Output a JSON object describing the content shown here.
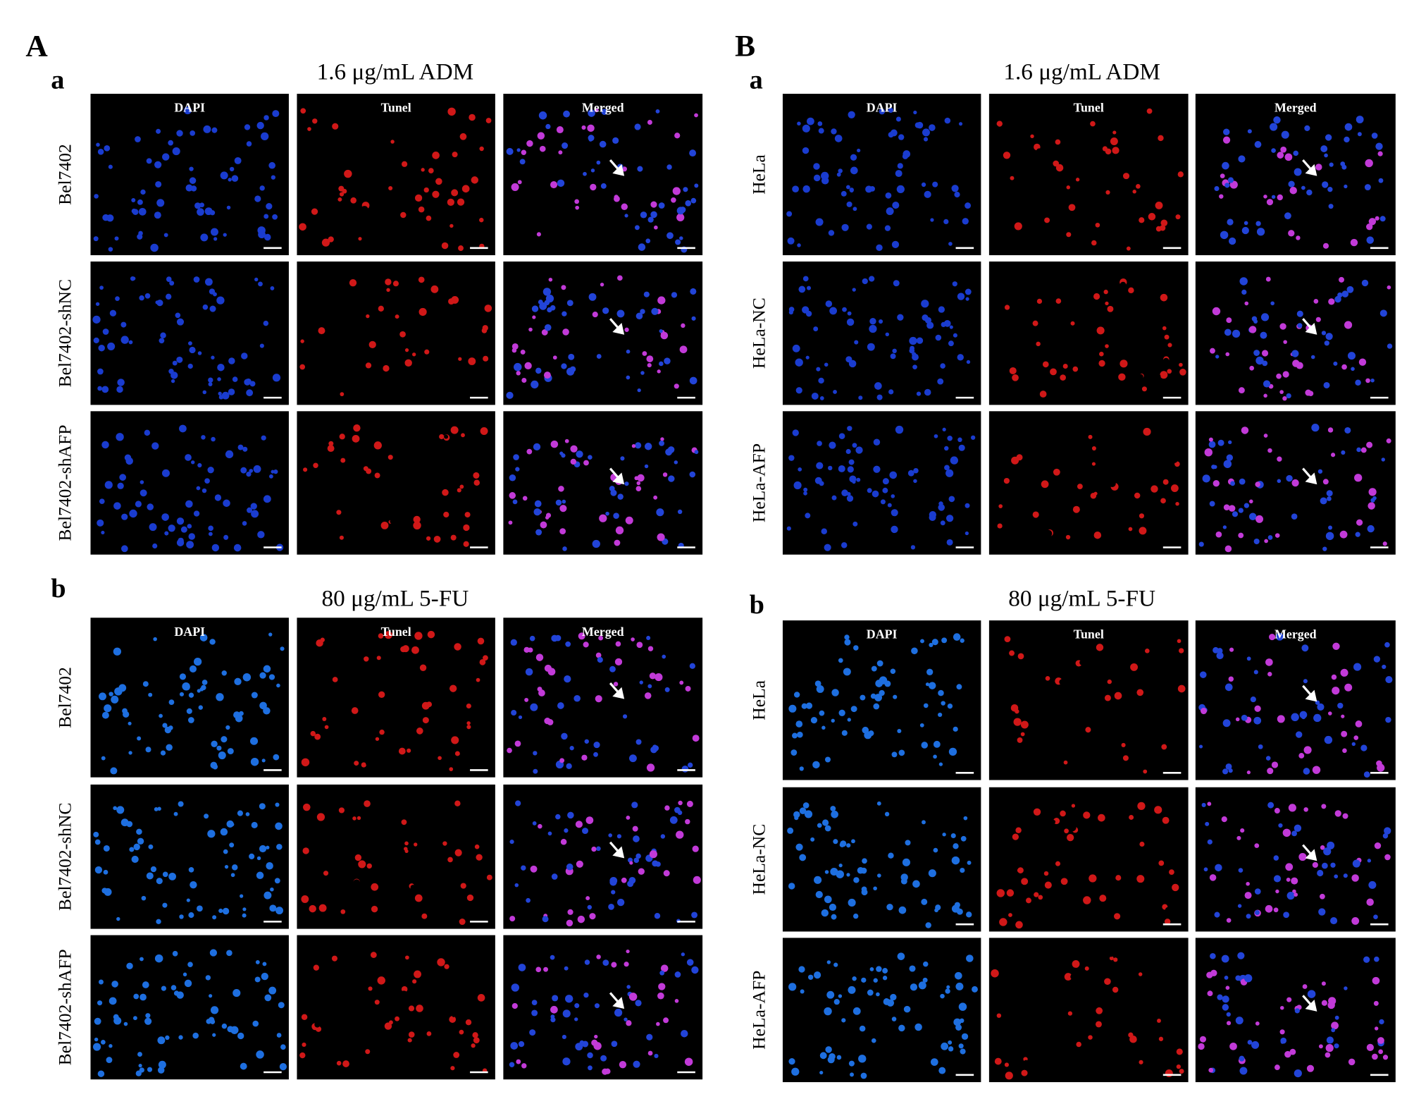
{
  "panels": [
    {
      "label": "A",
      "subpanels": [
        {
          "label": "a",
          "title": "1.6 μg/mL ADM",
          "columns": [
            "DAPI",
            "Tunel",
            "Merged"
          ],
          "rows": [
            "Bel7402",
            "Bel7402-shNC",
            "Bel7402-shAFP"
          ]
        },
        {
          "label": "b",
          "title": "80 μg/mL 5-FU",
          "columns": [
            "DAPI",
            "Tunel",
            "Merged"
          ],
          "rows": [
            "Bel7402",
            "Bel7402-shNC",
            "Bel7402-shAFP"
          ]
        }
      ]
    },
    {
      "label": "B",
      "subpanels": [
        {
          "label": "a",
          "title": "1.6 μg/mL  ADM",
          "columns": [
            "DAPI",
            "Tunel",
            "Merged"
          ],
          "rows": [
            "HeLa",
            "HeLa-NC",
            "HeLa-AFP"
          ]
        },
        {
          "label": "b",
          "title": "80 μg/mL 5-FU",
          "columns": [
            "DAPI",
            "Tunel",
            "Merged"
          ],
          "rows": [
            "HeLa",
            "HeLa-NC",
            "HeLa-AFP"
          ]
        }
      ]
    }
  ]
}
